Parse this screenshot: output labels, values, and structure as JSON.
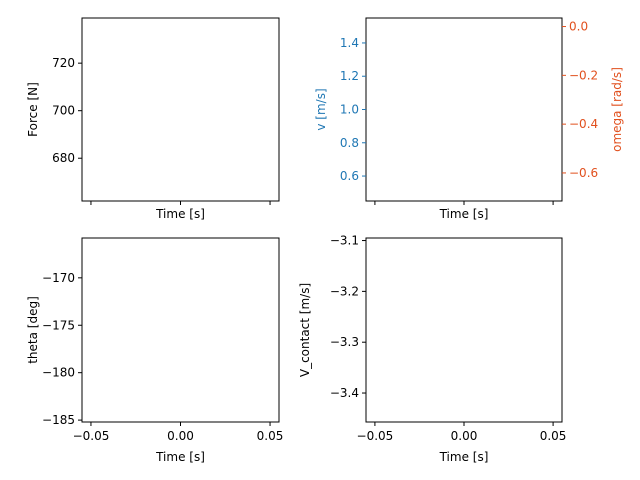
{
  "colors": {
    "axis": "#000000",
    "v_axis": "#1f77b4",
    "omega_axis": "#d62728",
    "omega_text": "#e1501e"
  },
  "chart_data": [
    {
      "type": "line",
      "xlabel": "Time [s]",
      "ylabel": "Force [N]",
      "xlim": [
        -0.055,
        0.055
      ],
      "ylim": [
        662,
        739
      ],
      "x_ticks": [
        -0.05,
        0.0,
        0.05
      ],
      "x_tick_labels_shown": false,
      "yticks": [
        680,
        700,
        720
      ],
      "ytick_labels": [
        "680",
        "700",
        "720"
      ],
      "series": [],
      "grid": false
    },
    {
      "type": "line",
      "xlabel": "Time [s]",
      "ylabel": "v [m/s]",
      "ylabel_color": "#1f77b4",
      "xlim": [
        -0.055,
        0.055
      ],
      "ylim": [
        0.45,
        1.55
      ],
      "x_ticks": [
        -0.05,
        0.0,
        0.05
      ],
      "x_tick_labels_shown": false,
      "yticks": [
        0.6,
        0.8,
        1.0,
        1.2,
        1.4
      ],
      "ytick_labels": [
        "0.6",
        "0.8",
        "1.0",
        "1.2",
        "1.4"
      ],
      "right_axis": {
        "ylabel": "omega [rad/s]",
        "color": "#e1501e",
        "ylim": [
          -0.715,
          0.035
        ],
        "yticks": [
          -0.6,
          -0.4,
          -0.2,
          0.0
        ],
        "ytick_labels": [
          "−0.6",
          "−0.4",
          "−0.2",
          "0.0"
        ]
      },
      "series": [],
      "grid": false
    },
    {
      "type": "line",
      "xlabel": "Time [s]",
      "ylabel": "theta [deg]",
      "xlim": [
        -0.055,
        0.055
      ],
      "ylim": [
        -185.2,
        -165.8
      ],
      "x_ticks": [
        -0.05,
        0.0,
        0.05
      ],
      "xtick_labels": [
        "−0.05",
        "0.00",
        "0.05"
      ],
      "yticks": [
        -185,
        -180,
        -175,
        -170
      ],
      "ytick_labels": [
        "−185",
        "−180",
        "−175",
        "−170"
      ],
      "series": [],
      "grid": false
    },
    {
      "type": "line",
      "xlabel": "Time [s]",
      "ylabel": "V_contact [m/s]",
      "xlim": [
        -0.055,
        0.055
      ],
      "ylim": [
        -3.457,
        -3.095
      ],
      "x_ticks": [
        -0.05,
        0.0,
        0.05
      ],
      "xtick_labels": [
        "−0.05",
        "0.00",
        "0.05"
      ],
      "yticks": [
        -3.4,
        -3.3,
        -3.2,
        -3.1
      ],
      "ytick_labels": [
        "−3.4",
        "−3.3",
        "−3.2",
        "−3.1"
      ],
      "series": [],
      "grid": false
    }
  ]
}
